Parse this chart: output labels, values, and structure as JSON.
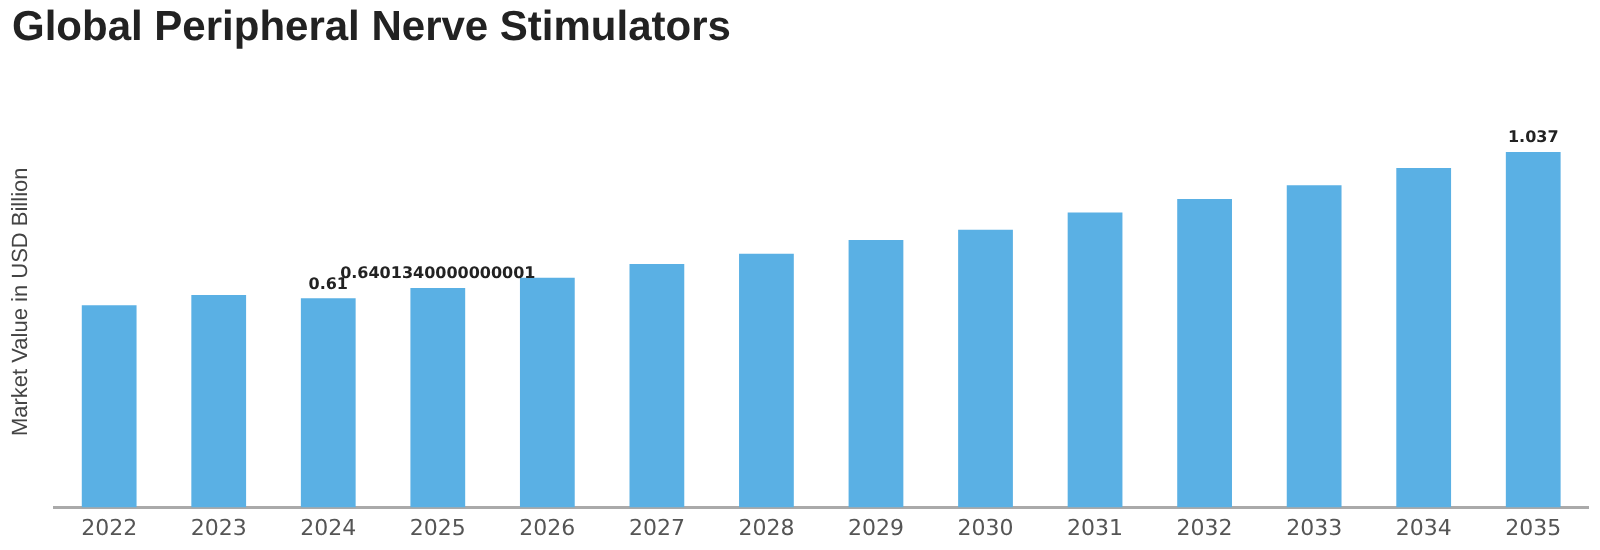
{
  "chart_data": {
    "type": "bar",
    "title": "Global Peripheral Nerve Stimulators",
    "ylabel": "Market Value in USD Billion",
    "categories": [
      "2022",
      "2023",
      "2024",
      "2025",
      "2026",
      "2027",
      "2028",
      "2029",
      "2030",
      "2031",
      "2032",
      "2033",
      "2034",
      "2035"
    ],
    "values": [
      0.59,
      0.62,
      0.61,
      0.6401340000000001,
      0.67,
      0.71,
      0.74,
      0.78,
      0.81,
      0.86,
      0.9,
      0.94,
      0.99,
      1.037
    ],
    "value_labels": [
      null,
      null,
      "0.61",
      "0.6401340000000001",
      null,
      null,
      null,
      null,
      null,
      null,
      null,
      null,
      null,
      "1.037"
    ],
    "color": "#5ab0e4",
    "grid": false,
    "legend": false,
    "tick_labels": "x"
  }
}
